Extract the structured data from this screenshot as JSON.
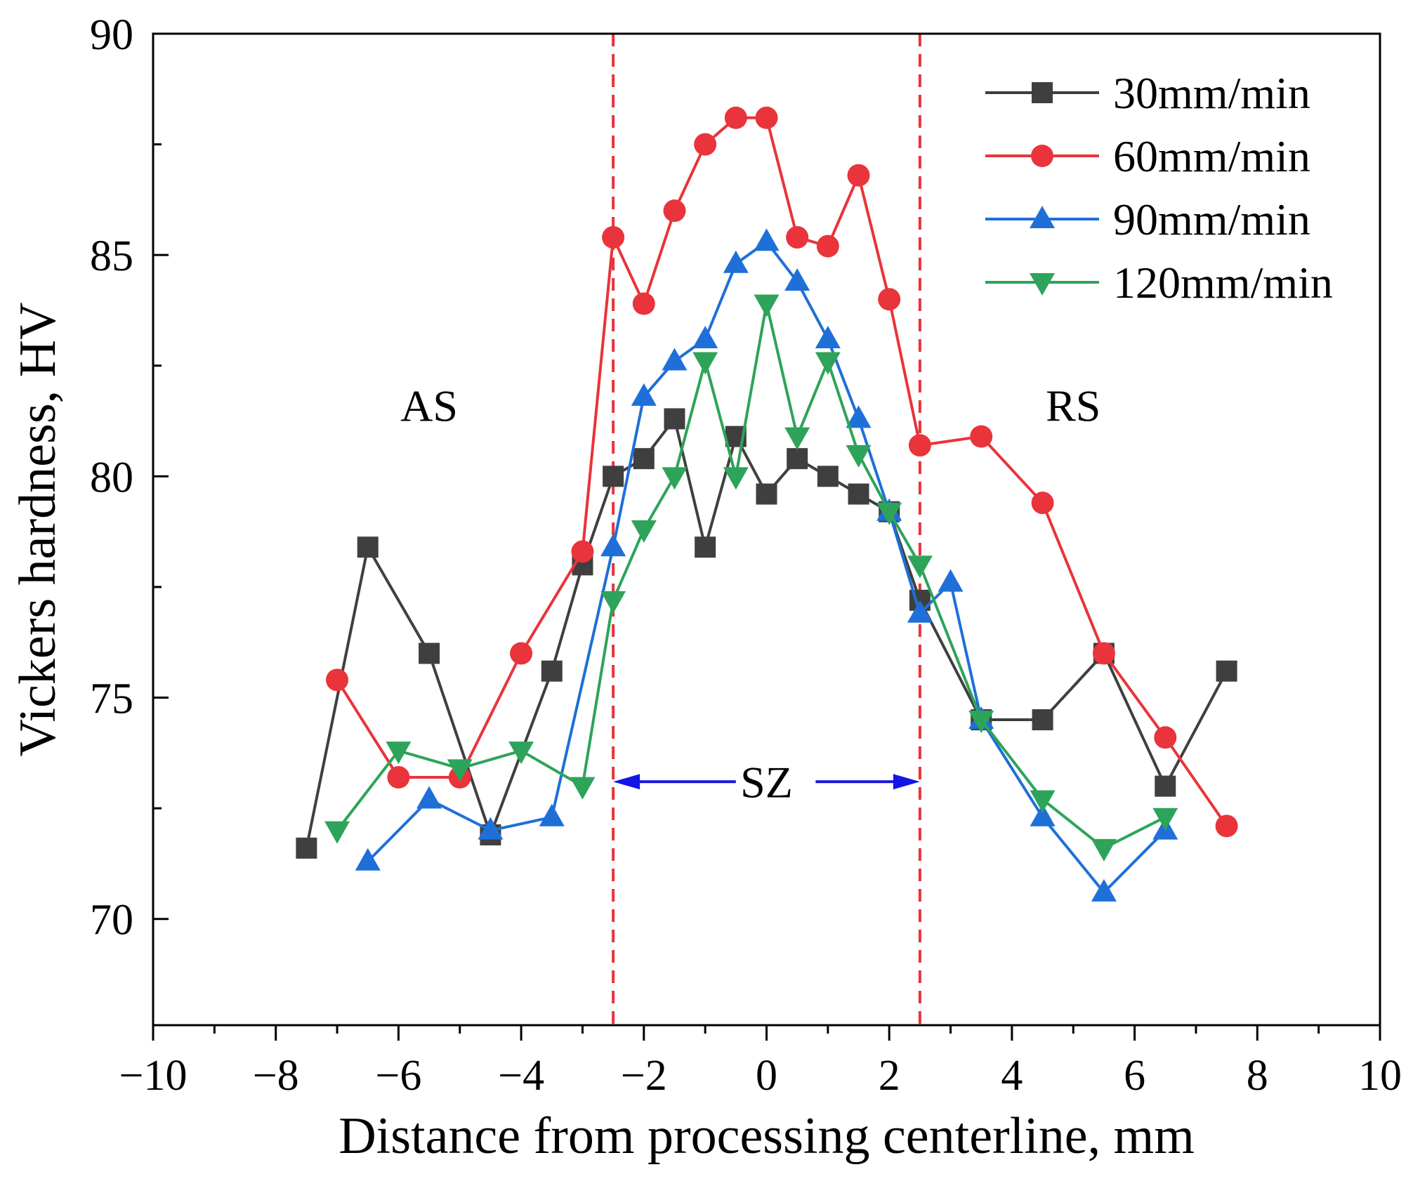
{
  "chart_data": {
    "type": "line",
    "title": "",
    "xlabel": "Distance from processing centerline, mm",
    "ylabel": "Vickers hardness, HV",
    "xlim": [
      -10,
      10
    ],
    "ylim": [
      67.6,
      90
    ],
    "xticks": [
      -10,
      -8,
      -6,
      -4,
      -2,
      0,
      2,
      4,
      6,
      8,
      10
    ],
    "xtick_labels": [
      "−10",
      "−8",
      "−6",
      "−4",
      "−2",
      "0",
      "2",
      "4",
      "6",
      "8",
      "10"
    ],
    "yticks": [
      70,
      75,
      80,
      85,
      90
    ],
    "ytick_labels": [
      "70",
      "75",
      "80",
      "85",
      "90"
    ],
    "legend_position": "top-right",
    "series": [
      {
        "name": "30mm/min",
        "color": "#3f3f3f",
        "marker": "square",
        "x": [
          -7.5,
          -6.5,
          -5.5,
          -4.5,
          -3.5,
          -3,
          -2.5,
          -2,
          -1.5,
          -1,
          -0.5,
          0,
          0.5,
          1,
          1.5,
          2,
          2.5,
          3.5,
          4.5,
          5.5,
          6.5,
          7.5
        ],
        "y": [
          71.6,
          78.4,
          76.0,
          71.9,
          75.6,
          78.0,
          80.0,
          80.4,
          81.3,
          78.4,
          80.9,
          79.6,
          80.4,
          80.0,
          79.6,
          79.2,
          77.2,
          74.5,
          74.5,
          76.0,
          73.0,
          75.6
        ]
      },
      {
        "name": "60mm/min",
        "color": "#e8343a",
        "marker": "circle",
        "x": [
          -7,
          -6,
          -5,
          -4,
          -3,
          -2.5,
          -2,
          -1.5,
          -1,
          -0.5,
          0,
          0.5,
          1,
          1.5,
          2,
          2.5,
          3.5,
          4.5,
          5.5,
          6.5,
          7.5
        ],
        "y": [
          75.4,
          73.2,
          73.2,
          76.0,
          78.3,
          85.4,
          83.9,
          86.0,
          87.5,
          88.1,
          88.1,
          85.4,
          85.2,
          86.8,
          84.0,
          80.7,
          80.9,
          79.4,
          76.0,
          74.1,
          72.1
        ]
      },
      {
        "name": "90mm/min",
        "color": "#1f6fd8",
        "marker": "triangle-up",
        "x": [
          -6.5,
          -5.5,
          -4.5,
          -3.5,
          -2.5,
          -2,
          -1.5,
          -1,
          -0.5,
          0,
          0.5,
          1,
          1.5,
          2,
          2.5,
          3,
          3.5,
          4.5,
          5.5,
          6.5
        ],
        "y": [
          71.3,
          72.7,
          72.0,
          72.3,
          78.4,
          81.8,
          82.6,
          83.1,
          84.8,
          85.3,
          84.4,
          83.1,
          81.3,
          79.2,
          76.9,
          77.6,
          74.5,
          72.3,
          70.6,
          72.0
        ]
      },
      {
        "name": "120mm/min",
        "color": "#2ea35a",
        "marker": "triangle-down",
        "x": [
          -7,
          -6,
          -5,
          -4,
          -3,
          -2.5,
          -2,
          -1.5,
          -1,
          -0.5,
          0,
          0.5,
          1,
          1.5,
          2,
          2.5,
          3.5,
          4.5,
          5.5,
          6.5
        ],
        "y": [
          72.0,
          73.8,
          73.4,
          73.8,
          73.0,
          77.2,
          78.8,
          80.0,
          82.6,
          80.0,
          83.9,
          80.9,
          82.6,
          80.5,
          79.2,
          78.0,
          74.5,
          72.7,
          71.6,
          72.3
        ]
      }
    ],
    "reference_lines": {
      "x": [
        -2.5,
        2.5
      ],
      "color": "#e8343a",
      "style": "dashed"
    },
    "annotations": [
      {
        "text": "AS",
        "x": -5.5,
        "y": 81.6
      },
      {
        "text": "RS",
        "x": 5.0,
        "y": 81.6
      },
      {
        "text": "SZ",
        "x": 0,
        "y": 73.1
      }
    ],
    "sz_arrow": {
      "x_start": -2.5,
      "x_end": 2.5,
      "y": 73.1,
      "color": "#1414e6"
    }
  }
}
